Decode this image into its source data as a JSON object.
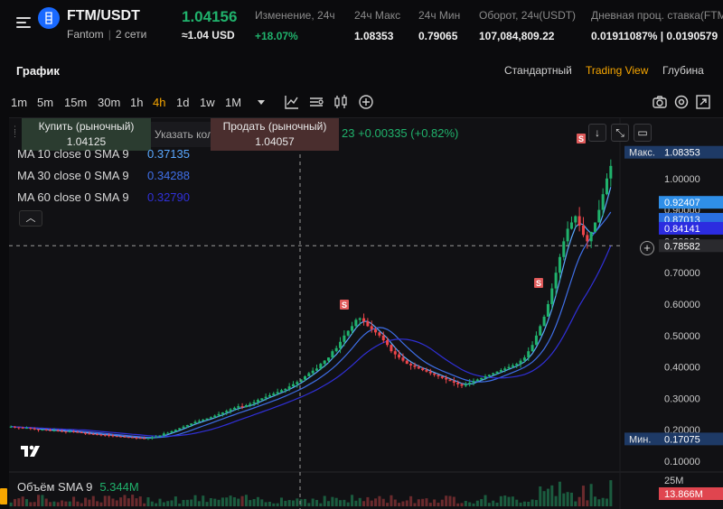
{
  "header": {
    "pair": "FTM/USDT",
    "coin_name": "Fantom",
    "networks": "2 сети",
    "last_price": "1.04156",
    "last_price_fiat": "≈1.04 USD",
    "stats": [
      {
        "label": "Изменение, 24ч",
        "value": "+18.07%",
        "positive": true
      },
      {
        "label": "24ч Макс",
        "value": "1.08353"
      },
      {
        "label": "24ч Мин",
        "value": "0.79065"
      },
      {
        "label": "Оборот, 24ч(USDT)",
        "value": "107,084,809.22"
      },
      {
        "label": "Дневная проц. ставка(FTM",
        "value": "0.01911087% | 0.0190579"
      }
    ],
    "icons": {
      "menu": "menu-icon",
      "coin": "fantom-logo"
    }
  },
  "tabs_row": {
    "title": "График",
    "views": [
      {
        "label": "Стандартный",
        "active": false
      },
      {
        "label": "Trading View",
        "active": true
      },
      {
        "label": "Глубина",
        "active": false
      }
    ]
  },
  "toolbar": {
    "timeframes": [
      {
        "label": "1m",
        "active": false
      },
      {
        "label": "5m",
        "active": false
      },
      {
        "label": "15m",
        "active": false
      },
      {
        "label": "30m",
        "active": false
      },
      {
        "label": "1h",
        "active": false
      },
      {
        "label": "4h",
        "active": true
      },
      {
        "label": "1d",
        "active": false
      },
      {
        "label": "1w",
        "active": false
      },
      {
        "label": "1M",
        "active": false
      }
    ],
    "icons": [
      "dropdown-arrow-icon",
      "line-chart-icon",
      "indicators-icon",
      "candles-icon",
      "add-icon",
      "camera-icon",
      "settings-icon",
      "fullscreen-icon"
    ]
  },
  "order_panel": {
    "buy_label": "Купить (рыночный)",
    "buy_price": "1.04125",
    "qty_placeholder": "Указать коли",
    "sell_label": "Продать (рыночный)",
    "sell_price": "1.04057",
    "change_text": "23 +0.00335 (+0.82%)"
  },
  "indicators": {
    "ma": [
      {
        "label": "MA 10 close 0 SMA 9",
        "value": "0.37135",
        "color": "#5aa8ff"
      },
      {
        "label": "MA 30 close 0 SMA 9",
        "value": "0.34288",
        "color": "#3f6fe8"
      },
      {
        "label": "MA 60 close 0 SMA 9",
        "value": "0.32790",
        "color": "#3030d8"
      }
    ],
    "volume_label": "Объём SMA 9",
    "volume_value": "5.344M"
  },
  "price_axis": {
    "ticks": [
      "1.00000",
      "0.90000",
      "0.80000",
      "0.70000",
      "0.60000",
      "0.50000",
      "0.40000",
      "0.30000",
      "0.20000",
      "0.10000"
    ],
    "tags": [
      {
        "prefix": "Макс.",
        "value": "1.08353",
        "color": "#1e3a66"
      },
      {
        "value": "0.92407",
        "color": "#2f8fe8"
      },
      {
        "value": "0.87013",
        "color": "#2a6fe0"
      },
      {
        "value": "0.84141",
        "color": "#2c2ce0"
      },
      {
        "value": "0.78582",
        "color": "#2a2a2e",
        "crosshair": true
      },
      {
        "prefix": "Мин.",
        "value": "0.17075",
        "color": "#1e3a66"
      }
    ],
    "volume_tick": "25M",
    "volume_tag": "13.866M",
    "volume_tag_color": "#e0454f"
  },
  "chart_data": {
    "type": "candlestick",
    "ylim": [
      0.1,
      1.12
    ],
    "close": [
      0.21,
      0.208,
      0.207,
      0.205,
      0.206,
      0.204,
      0.202,
      0.2,
      0.201,
      0.199,
      0.197,
      0.198,
      0.196,
      0.195,
      0.194,
      0.195,
      0.193,
      0.192,
      0.19,
      0.188,
      0.187,
      0.186,
      0.185,
      0.184,
      0.183,
      0.182,
      0.18,
      0.179,
      0.178,
      0.177,
      0.176,
      0.175,
      0.174,
      0.173,
      0.172,
      0.174,
      0.176,
      0.178,
      0.182,
      0.188,
      0.19,
      0.195,
      0.2,
      0.205,
      0.21,
      0.215,
      0.22,
      0.225,
      0.228,
      0.232,
      0.236,
      0.24,
      0.245,
      0.25,
      0.255,
      0.26,
      0.265,
      0.27,
      0.275,
      0.272,
      0.278,
      0.283,
      0.288,
      0.295,
      0.3,
      0.305,
      0.31,
      0.315,
      0.32,
      0.326,
      0.33,
      0.338,
      0.345,
      0.352,
      0.36,
      0.37,
      0.38,
      0.388,
      0.395,
      0.41,
      0.42,
      0.43,
      0.45,
      0.46,
      0.48,
      0.5,
      0.515,
      0.53,
      0.55,
      0.555,
      0.545,
      0.53,
      0.52,
      0.51,
      0.5,
      0.485,
      0.47,
      0.45,
      0.44,
      0.43,
      0.42,
      0.41,
      0.405,
      0.4,
      0.395,
      0.39,
      0.385,
      0.38,
      0.375,
      0.37,
      0.365,
      0.36,
      0.355,
      0.35,
      0.345,
      0.34,
      0.345,
      0.35,
      0.355,
      0.36,
      0.365,
      0.37,
      0.375,
      0.38,
      0.385,
      0.39,
      0.395,
      0.4,
      0.405,
      0.41,
      0.42,
      0.43,
      0.45,
      0.47,
      0.5,
      0.53,
      0.56,
      0.6,
      0.65,
      0.7,
      0.75,
      0.8,
      0.84,
      0.86,
      0.88,
      0.85,
      0.82,
      0.8,
      0.83,
      0.86,
      0.9,
      0.95,
      1.0,
      1.04
    ]
  },
  "annotations": {
    "event_marker": "S"
  }
}
